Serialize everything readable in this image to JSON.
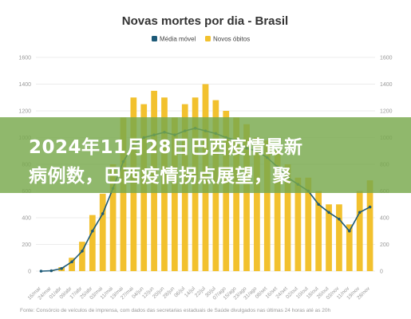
{
  "chart_data": {
    "type": "bar",
    "title": "Novas mortes por dia - Brasil",
    "legend": {
      "position": "top-center",
      "items": [
        "Média móvel",
        "Novos óbitos"
      ]
    },
    "colors": {
      "moving_average": "#1d5a78",
      "daily": "#f2c12e"
    },
    "ylim": [
      0,
      1600
    ],
    "y_ticks": [
      "0",
      "200",
      "400",
      "600",
      "800",
      "1000",
      "1200",
      "1400",
      "1600"
    ],
    "grid": true,
    "x_ticks": [
      "16/mar",
      "24/mar",
      "01/abr",
      "09/abr",
      "17/abr",
      "25/abr",
      "03/mai",
      "11/mai",
      "19/mai",
      "27/mai",
      "04/jun",
      "12/jun",
      "20/jun",
      "28/jun",
      "06/jul",
      "14/jul",
      "22/jul",
      "30/jul",
      "07/ago",
      "15/ago",
      "23/ago",
      "31/ago",
      "08/set",
      "16/set",
      "24/set",
      "02/out",
      "10/out",
      "18/out",
      "26/out",
      "03/nov",
      "11/nov",
      "19/nov",
      "28/nov"
    ],
    "series": [
      {
        "name": "Média móvel",
        "kind": "line",
        "x": [
          "16/mar",
          "24/mar",
          "01/abr",
          "09/abr",
          "17/abr",
          "25/abr",
          "03/mai",
          "11/mai",
          "19/mai",
          "27/mai",
          "04/jun",
          "12/jun",
          "20/jun",
          "28/jun",
          "06/jul",
          "14/jul",
          "22/jul",
          "30/jul",
          "07/ago",
          "15/ago",
          "23/ago",
          "31/ago",
          "08/set",
          "16/set",
          "24/set",
          "02/out",
          "10/out",
          "18/out",
          "26/out",
          "03/nov",
          "11/nov",
          "19/nov",
          "28/nov"
        ],
        "values": [
          0,
          3,
          20,
          70,
          150,
          300,
          430,
          620,
          820,
          950,
          1000,
          1020,
          1040,
          1020,
          1050,
          1070,
          1050,
          1030,
          1000,
          980,
          920,
          900,
          850,
          780,
          700,
          650,
          600,
          500,
          440,
          390,
          300,
          440,
          480
        ]
      },
      {
        "name": "Novos óbitos",
        "kind": "bar",
        "x": [
          "16/mar",
          "24/mar",
          "01/abr",
          "09/abr",
          "17/abr",
          "25/abr",
          "03/mai",
          "11/mai",
          "19/mai",
          "27/mai",
          "04/jun",
          "12/jun",
          "20/jun",
          "28/jun",
          "06/jul",
          "14/jul",
          "22/jul",
          "30/jul",
          "07/ago",
          "15/ago",
          "23/ago",
          "31/ago",
          "08/set",
          "16/set",
          "24/set",
          "02/out",
          "10/out",
          "18/out",
          "26/out",
          "03/nov",
          "11/nov",
          "19/nov",
          "28/nov"
        ],
        "values": [
          0,
          5,
          30,
          100,
          220,
          420,
          580,
          800,
          1150,
          1300,
          1250,
          1350,
          1300,
          1150,
          1250,
          1300,
          1400,
          1280,
          1200,
          1150,
          1100,
          1000,
          980,
          900,
          800,
          700,
          700,
          600,
          500,
          500,
          350,
          600,
          680
        ]
      }
    ],
    "source": "Fonte: Consórcio de veículos de imprensa, com dados das secretarias estaduais de Saúde divulgados nas últimas 24 horas até as 20h"
  },
  "banner": {
    "line1": "2024年11月28日巴西疫情最新",
    "line2": "病例数，巴西疫情拐点展望，聚"
  }
}
